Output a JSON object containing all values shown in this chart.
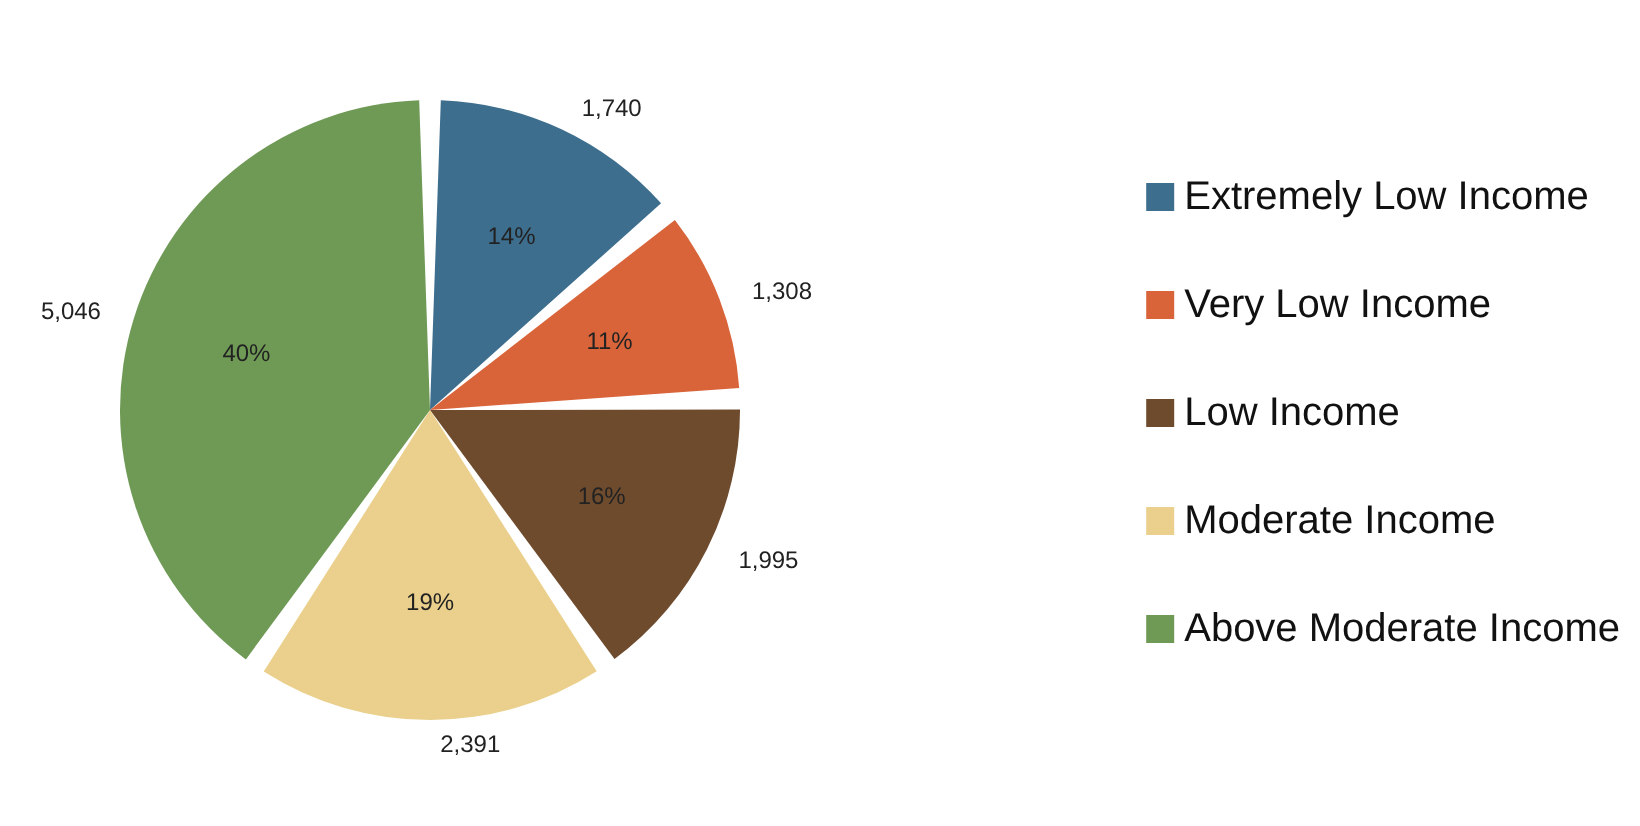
{
  "chart_data": {
    "type": "pie",
    "categories": [
      "Extremely Low Income",
      "Very Low Income",
      "Low Income",
      "Moderate Income",
      "Above Moderate Income"
    ],
    "values": [
      1740,
      1308,
      1995,
      2391,
      5046
    ],
    "colors": [
      "#3e6e8e",
      "#d9643a",
      "#6f4b2e",
      "#ead08c",
      "#6f9a56"
    ],
    "value_labels": [
      "1,740",
      "1,308",
      "1,995",
      "2,391",
      "5,046"
    ],
    "annotations": [
      "14%",
      "11%",
      "16%",
      "19%",
      "40%"
    ],
    "legend": "right"
  }
}
